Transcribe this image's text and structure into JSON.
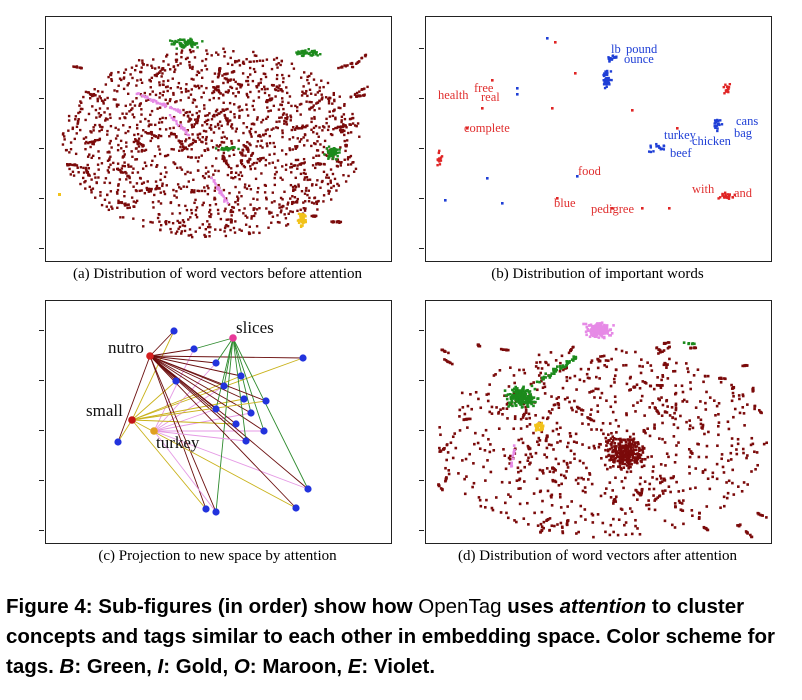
{
  "panels": [
    {
      "id": "a",
      "caption": "(a) Distribution of word vectors before attention"
    },
    {
      "id": "b",
      "caption": "(b) Distribution of important words",
      "labels": [
        {
          "text": "lb",
          "color": "#1f3fd6"
        },
        {
          "text": "pound",
          "color": "#1f3fd6"
        },
        {
          "text": "ounce",
          "color": "#1f3fd6"
        },
        {
          "text": "health",
          "color": "#e03030"
        },
        {
          "text": "free",
          "color": "#e03030"
        },
        {
          "text": "real",
          "color": "#e03030"
        },
        {
          "text": "complete",
          "color": "#e03030"
        },
        {
          "text": "cans",
          "color": "#1f3fd6"
        },
        {
          "text": "bag",
          "color": "#1f3fd6"
        },
        {
          "text": "turkey",
          "color": "#1f3fd6"
        },
        {
          "text": "chicken",
          "color": "#1f3fd6"
        },
        {
          "text": "beef",
          "color": "#1f3fd6"
        },
        {
          "text": "food",
          "color": "#e03030"
        },
        {
          "text": "with",
          "color": "#e03030"
        },
        {
          "text": "and",
          "color": "#e03030"
        },
        {
          "text": "blue",
          "color": "#e03030"
        },
        {
          "text": "pedigree",
          "color": "#e03030"
        }
      ]
    },
    {
      "id": "c",
      "caption": "(c) Projection to new space by attention",
      "labels": [
        {
          "text": "nutro"
        },
        {
          "text": "slices"
        },
        {
          "text": "small"
        },
        {
          "text": "turkey"
        }
      ]
    },
    {
      "id": "d",
      "caption": "(d) Distribution of word vectors after attention"
    }
  ],
  "figure_caption": {
    "lead": "Figure 4:",
    "t1": " Sub-figures (in order) show how ",
    "name": "OpenTag",
    "t2": " uses ",
    "em": "attention",
    "t3": " to cluster concepts and tags similar to each other in embedding space. Color scheme for tags. ",
    "b": "B",
    "b_val": ": Green, ",
    "i": "I",
    "i_val": ": Gold, ",
    "o": "O",
    "o_val": ": Maroon, ",
    "e": "E",
    "e_val": ": Violet."
  },
  "colors": {
    "maroon": "#7b0a0a",
    "green": "#1c8a1c",
    "gold": "#f2c21a",
    "violet": "#e68ae6",
    "red": "#e02424",
    "blue": "#1f3fd6"
  }
}
